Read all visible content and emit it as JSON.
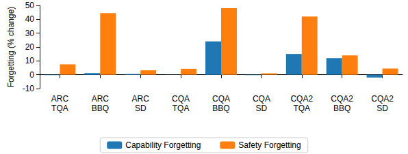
{
  "chart_data": {
    "type": "bar",
    "y_label": "Forgetting (% change)",
    "categories": [
      "ARC\nTQA",
      "ARC\nBBQ",
      "ARC\nSD",
      "CQA\nTQA",
      "CQA\nBBQ",
      "CQA\nSD",
      "CQA2\nTQA",
      "CQA2\nBBQ",
      "CQA2\nSD"
    ],
    "series": [
      {
        "name": "Capability Forgetting",
        "color": "#1f77b4",
        "values": [
          -0.3,
          1.2,
          0.5,
          -0.2,
          24,
          -0.3,
          15,
          12,
          -2
        ]
      },
      {
        "name": "Safety Forgetting",
        "color": "#ff7f0e",
        "values": [
          7.5,
          44.5,
          3.2,
          4.3,
          48,
          1,
          42,
          14,
          4.5
        ]
      }
    ],
    "ylim": [
      -10,
      50
    ],
    "yticks": [
      -10,
      0,
      10,
      20,
      30,
      40,
      50
    ],
    "grid": false,
    "legend": "bottom"
  }
}
